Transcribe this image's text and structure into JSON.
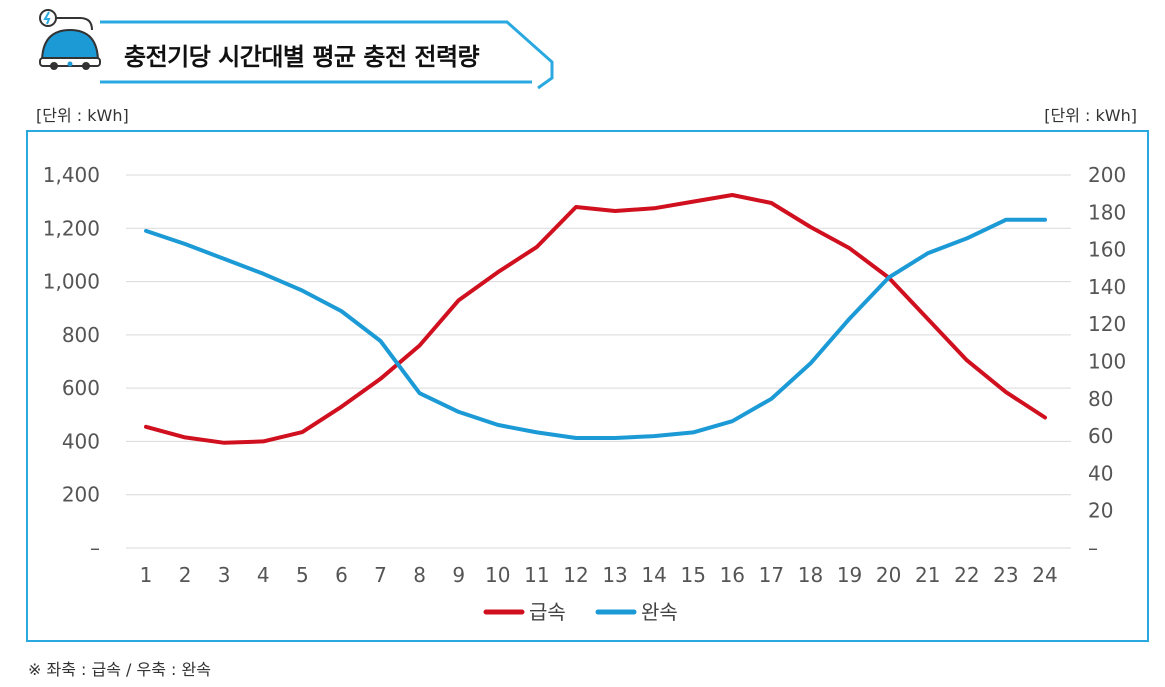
{
  "header": {
    "title": "충전기당 시간대별 평균 충전 전력량"
  },
  "units": {
    "left": "[단위 : kWh]",
    "right": "[단위 : kWh]"
  },
  "footnote": "※ 좌축 : 급속 / 우축 : 완속",
  "colors": {
    "fast": "#d0101e",
    "slow": "#1b9ad6",
    "frame": "#2aa9e0",
    "grid": "#d9d9d9"
  },
  "icon": "ev-charging-car-icon",
  "chart_data": {
    "type": "line",
    "x": [
      1,
      2,
      3,
      4,
      5,
      6,
      7,
      8,
      9,
      10,
      11,
      12,
      13,
      14,
      15,
      16,
      17,
      18,
      19,
      20,
      21,
      22,
      23,
      24
    ],
    "y_left": {
      "ticks": [
        "–",
        "200",
        "400",
        "600",
        "800",
        "1,000",
        "1,200",
        "1,400"
      ],
      "range": [
        0,
        1400
      ]
    },
    "y_right": {
      "ticks": [
        "–",
        "20",
        "40",
        "60",
        "80",
        "100",
        "120",
        "140",
        "160",
        "180",
        "200"
      ],
      "range": [
        0,
        200
      ]
    },
    "series": [
      {
        "name": "급속",
        "axis": "left",
        "color": "#d0101e",
        "values": [
          455,
          415,
          395,
          400,
          435,
          530,
          635,
          760,
          930,
          1035,
          1130,
          1280,
          1265,
          1275,
          1300,
          1325,
          1295,
          1205,
          1125,
          1015,
          860,
          705,
          585,
          490
        ]
      },
      {
        "name": "완속",
        "axis": "right",
        "color": "#1b9ad6",
        "values": [
          170,
          163,
          155,
          147,
          138,
          127,
          111,
          83,
          73,
          66,
          62,
          59,
          59,
          60,
          62,
          68,
          80,
          99,
          123,
          145,
          158,
          166,
          176,
          176
        ]
      }
    ],
    "grid": true,
    "legend": "bottom-center"
  }
}
